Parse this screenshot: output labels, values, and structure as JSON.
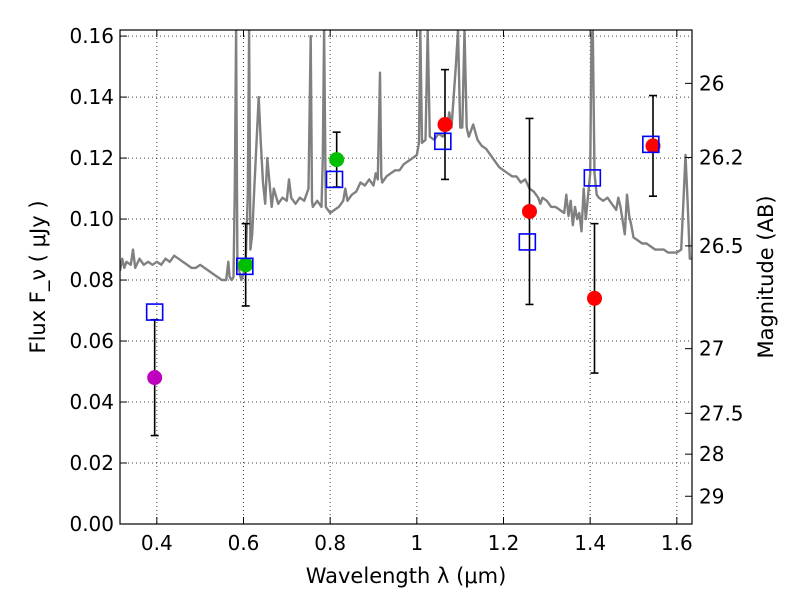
{
  "chart_data": {
    "type": "scatter",
    "title": "",
    "xlabel": "Wavelength  λ (μm)",
    "ylabel": "Flux  F_ν  ( μJy )",
    "y2label": "Magnitude (AB)",
    "xlim": [
      0.315,
      1.635
    ],
    "ylim": [
      0.0,
      0.162
    ],
    "grid": true,
    "x_ticks": [
      0.4,
      0.6,
      0.8,
      1.0,
      1.2,
      1.4,
      1.6
    ],
    "x_tick_labels": [
      "0.4",
      "0.6",
      "0.8",
      "1",
      "1.2",
      "1.4",
      "1.6"
    ],
    "y_ticks": [
      0.0,
      0.02,
      0.04,
      0.06,
      0.08,
      0.1,
      0.12,
      0.14,
      0.16
    ],
    "y_tick_labels": [
      "0.00",
      "0.02",
      "0.04",
      "0.06",
      "0.08",
      "0.10",
      "0.12",
      "0.14",
      "0.16"
    ],
    "y2_ticks": [
      {
        "label": "26",
        "flux": 0.1445
      },
      {
        "label": "26.2",
        "flux": 0.1202
      },
      {
        "label": "26.5",
        "flux": 0.0912
      },
      {
        "label": "27",
        "flux": 0.0575
      },
      {
        "label": "27.5",
        "flux": 0.0363
      },
      {
        "label": "28",
        "flux": 0.0229
      },
      {
        "label": "29",
        "flux": 0.0091
      }
    ],
    "observed": [
      {
        "x": 0.395,
        "y": 0.048,
        "err": 0.019,
        "color": "#bf00bf"
      },
      {
        "x": 0.605,
        "y": 0.085,
        "err": 0.0135,
        "color": "#00bf00"
      },
      {
        "x": 0.815,
        "y": 0.1195,
        "err": 0.009,
        "color": "#00bf00"
      },
      {
        "x": 1.065,
        "y": 0.131,
        "err": 0.018,
        "color": "#ff0000"
      },
      {
        "x": 1.26,
        "y": 0.1025,
        "err": 0.0305,
        "color": "#ff0000"
      },
      {
        "x": 1.41,
        "y": 0.074,
        "err": 0.0245,
        "color": "#ff0000"
      },
      {
        "x": 1.545,
        "y": 0.124,
        "err": 0.0165,
        "color": "#ff0000"
      }
    ],
    "model_bands": [
      {
        "x": 0.395,
        "y": 0.0695
      },
      {
        "x": 0.603,
        "y": 0.0845
      },
      {
        "x": 0.81,
        "y": 0.113
      },
      {
        "x": 1.06,
        "y": 0.1255
      },
      {
        "x": 1.255,
        "y": 0.0925
      },
      {
        "x": 1.405,
        "y": 0.1135
      },
      {
        "x": 1.54,
        "y": 0.1245
      }
    ],
    "spectrum": {
      "color": "#808080",
      "points": [
        [
          0.315,
          0.083
        ],
        [
          0.32,
          0.087
        ],
        [
          0.325,
          0.084
        ],
        [
          0.33,
          0.086
        ],
        [
          0.34,
          0.085
        ],
        [
          0.345,
          0.09
        ],
        [
          0.35,
          0.084
        ],
        [
          0.36,
          0.087
        ],
        [
          0.37,
          0.085
        ],
        [
          0.38,
          0.086
        ],
        [
          0.39,
          0.085
        ],
        [
          0.4,
          0.086
        ],
        [
          0.41,
          0.085
        ],
        [
          0.42,
          0.087
        ],
        [
          0.43,
          0.086
        ],
        [
          0.44,
          0.088
        ],
        [
          0.45,
          0.087
        ],
        [
          0.46,
          0.086
        ],
        [
          0.47,
          0.085
        ],
        [
          0.48,
          0.084
        ],
        [
          0.49,
          0.084
        ],
        [
          0.5,
          0.085
        ],
        [
          0.51,
          0.084
        ],
        [
          0.52,
          0.083
        ],
        [
          0.53,
          0.082
        ],
        [
          0.54,
          0.081
        ],
        [
          0.55,
          0.08
        ],
        [
          0.56,
          0.08
        ],
        [
          0.565,
          0.086
        ],
        [
          0.568,
          0.081
        ],
        [
          0.573,
          0.08
        ],
        [
          0.577,
          0.081
        ],
        [
          0.58,
          0.11
        ],
        [
          0.583,
          0.162
        ],
        [
          0.586,
          0.085
        ],
        [
          0.59,
          0.083
        ],
        [
          0.595,
          0.08
        ],
        [
          0.6,
          0.082
        ],
        [
          0.605,
          0.086
        ],
        [
          0.61,
          0.108
        ],
        [
          0.613,
          0.162
        ],
        [
          0.616,
          0.09
        ],
        [
          0.62,
          0.095
        ],
        [
          0.625,
          0.11
        ],
        [
          0.63,
          0.125
        ],
        [
          0.635,
          0.14
        ],
        [
          0.64,
          0.125
        ],
        [
          0.645,
          0.112
        ],
        [
          0.65,
          0.105
        ],
        [
          0.655,
          0.12
        ],
        [
          0.66,
          0.112
        ],
        [
          0.665,
          0.104
        ],
        [
          0.67,
          0.11
        ],
        [
          0.68,
          0.105
        ],
        [
          0.69,
          0.107
        ],
        [
          0.7,
          0.106
        ],
        [
          0.705,
          0.113
        ],
        [
          0.71,
          0.107
        ],
        [
          0.72,
          0.105
        ],
        [
          0.73,
          0.107
        ],
        [
          0.74,
          0.106
        ],
        [
          0.75,
          0.11
        ],
        [
          0.755,
          0.16
        ],
        [
          0.758,
          0.106
        ],
        [
          0.76,
          0.104
        ],
        [
          0.77,
          0.106
        ],
        [
          0.78,
          0.104
        ],
        [
          0.783,
          0.12
        ],
        [
          0.786,
          0.162
        ],
        [
          0.79,
          0.104
        ],
        [
          0.8,
          0.102
        ],
        [
          0.81,
          0.103
        ],
        [
          0.82,
          0.104
        ],
        [
          0.83,
          0.106
        ],
        [
          0.835,
          0.11
        ],
        [
          0.84,
          0.106
        ],
        [
          0.85,
          0.108
        ],
        [
          0.86,
          0.109
        ],
        [
          0.87,
          0.112
        ],
        [
          0.88,
          0.111
        ],
        [
          0.89,
          0.113
        ],
        [
          0.9,
          0.111
        ],
        [
          0.905,
          0.115
        ],
        [
          0.91,
          0.113
        ],
        [
          0.915,
          0.148
        ],
        [
          0.918,
          0.114
        ],
        [
          0.92,
          0.112
        ],
        [
          0.93,
          0.114
        ],
        [
          0.94,
          0.115
        ],
        [
          0.95,
          0.116
        ],
        [
          0.96,
          0.116
        ],
        [
          0.97,
          0.118
        ],
        [
          0.98,
          0.119
        ],
        [
          0.99,
          0.12
        ],
        [
          1.0,
          0.121
        ],
        [
          1.005,
          0.125
        ],
        [
          1.008,
          0.162
        ],
        [
          1.012,
          0.125
        ],
        [
          1.02,
          0.126
        ],
        [
          1.025,
          0.162
        ],
        [
          1.03,
          0.127
        ],
        [
          1.04,
          0.126
        ],
        [
          1.05,
          0.128
        ],
        [
          1.06,
          0.127
        ],
        [
          1.07,
          0.13
        ],
        [
          1.075,
          0.135
        ],
        [
          1.08,
          0.13
        ],
        [
          1.09,
          0.15
        ],
        [
          1.095,
          0.162
        ],
        [
          1.1,
          0.13
        ],
        [
          1.105,
          0.13
        ],
        [
          1.11,
          0.162
        ],
        [
          1.115,
          0.13
        ],
        [
          1.12,
          0.127
        ],
        [
          1.13,
          0.131
        ],
        [
          1.14,
          0.126
        ],
        [
          1.15,
          0.124
        ],
        [
          1.16,
          0.123
        ],
        [
          1.17,
          0.121
        ],
        [
          1.18,
          0.119
        ],
        [
          1.19,
          0.117
        ],
        [
          1.2,
          0.116
        ],
        [
          1.21,
          0.115
        ],
        [
          1.22,
          0.114
        ],
        [
          1.23,
          0.114
        ],
        [
          1.24,
          0.112
        ],
        [
          1.25,
          0.113
        ],
        [
          1.26,
          0.11
        ],
        [
          1.27,
          0.109
        ],
        [
          1.28,
          0.107
        ],
        [
          1.285,
          0.105
        ],
        [
          1.29,
          0.107
        ],
        [
          1.3,
          0.106
        ],
        [
          1.31,
          0.104
        ],
        [
          1.32,
          0.104
        ],
        [
          1.33,
          0.103
        ],
        [
          1.34,
          0.102
        ],
        [
          1.345,
          0.108
        ],
        [
          1.35,
          0.101
        ],
        [
          1.355,
          0.106
        ],
        [
          1.36,
          0.098
        ],
        [
          1.365,
          0.104
        ],
        [
          1.37,
          0.1
        ],
        [
          1.375,
          0.102
        ],
        [
          1.38,
          0.096
        ],
        [
          1.385,
          0.11
        ],
        [
          1.39,
          0.1
        ],
        [
          1.4,
          0.115
        ],
        [
          1.403,
          0.16
        ],
        [
          1.406,
          0.162
        ],
        [
          1.41,
          0.115
        ],
        [
          1.415,
          0.108
        ],
        [
          1.42,
          0.107
        ],
        [
          1.43,
          0.106
        ],
        [
          1.44,
          0.107
        ],
        [
          1.45,
          0.105
        ],
        [
          1.46,
          0.103
        ],
        [
          1.465,
          0.107
        ],
        [
          1.47,
          0.104
        ],
        [
          1.48,
          0.095
        ],
        [
          1.485,
          0.108
        ],
        [
          1.49,
          0.101
        ],
        [
          1.495,
          0.098
        ],
        [
          1.5,
          0.094
        ],
        [
          1.51,
          0.093
        ],
        [
          1.52,
          0.092
        ],
        [
          1.53,
          0.092
        ],
        [
          1.54,
          0.091
        ],
        [
          1.55,
          0.09
        ],
        [
          1.56,
          0.09
        ],
        [
          1.57,
          0.09
        ],
        [
          1.58,
          0.089
        ],
        [
          1.59,
          0.089
        ],
        [
          1.6,
          0.089
        ],
        [
          1.61,
          0.09
        ],
        [
          1.615,
          0.105
        ],
        [
          1.62,
          0.121
        ],
        [
          1.625,
          0.105
        ],
        [
          1.63,
          0.087
        ],
        [
          1.635,
          0.087
        ]
      ]
    }
  }
}
